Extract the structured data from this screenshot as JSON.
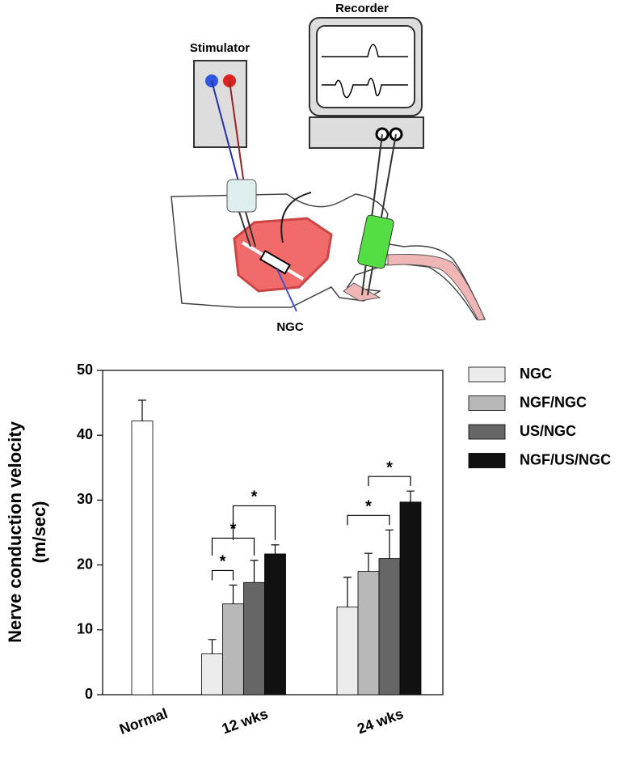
{
  "diagram": {
    "stimulator": "Stimulator",
    "recorder": "Recorder",
    "ngc": "NGC"
  },
  "chart_data": {
    "type": "bar",
    "ylabel": [
      "Nerve conduction velocity",
      "(m/sec)"
    ],
    "categories": [
      "Normal",
      "12 wks",
      "24 wks"
    ],
    "normal": {
      "value": 42.2,
      "error": 3.2,
      "color": "#ffffff"
    },
    "series": [
      {
        "name": "NGC",
        "color": "#ececec",
        "values": [
          null,
          6.3,
          13.5
        ],
        "errors": [
          null,
          2.2,
          4.6
        ]
      },
      {
        "name": "NGF/NGC",
        "color": "#b8b8b8",
        "values": [
          null,
          14.0,
          19.0
        ],
        "errors": [
          null,
          2.9,
          2.8
        ]
      },
      {
        "name": "US/NGC",
        "color": "#666666",
        "values": [
          null,
          17.3,
          21.0
        ],
        "errors": [
          null,
          3.4,
          4.4
        ]
      },
      {
        "name": "NGF/US/NGC",
        "color": "#111111",
        "values": [
          null,
          21.7,
          29.7
        ],
        "errors": [
          null,
          1.4,
          1.7
        ]
      }
    ],
    "ylim": [
      0,
      50
    ],
    "yticks": [
      0,
      10,
      20,
      30,
      40,
      50
    ],
    "annotations": [
      {
        "text": "*",
        "category": 1,
        "from": 0,
        "to": 1
      },
      {
        "text": "*",
        "category": 1,
        "from": 0,
        "to": 2
      },
      {
        "text": "*",
        "category": 1,
        "from": 1,
        "to": 3
      },
      {
        "text": "*",
        "category": 2,
        "from": 0,
        "to": 2
      },
      {
        "text": "*",
        "category": 2,
        "from": 1,
        "to": 3
      }
    ],
    "legend": "right"
  }
}
